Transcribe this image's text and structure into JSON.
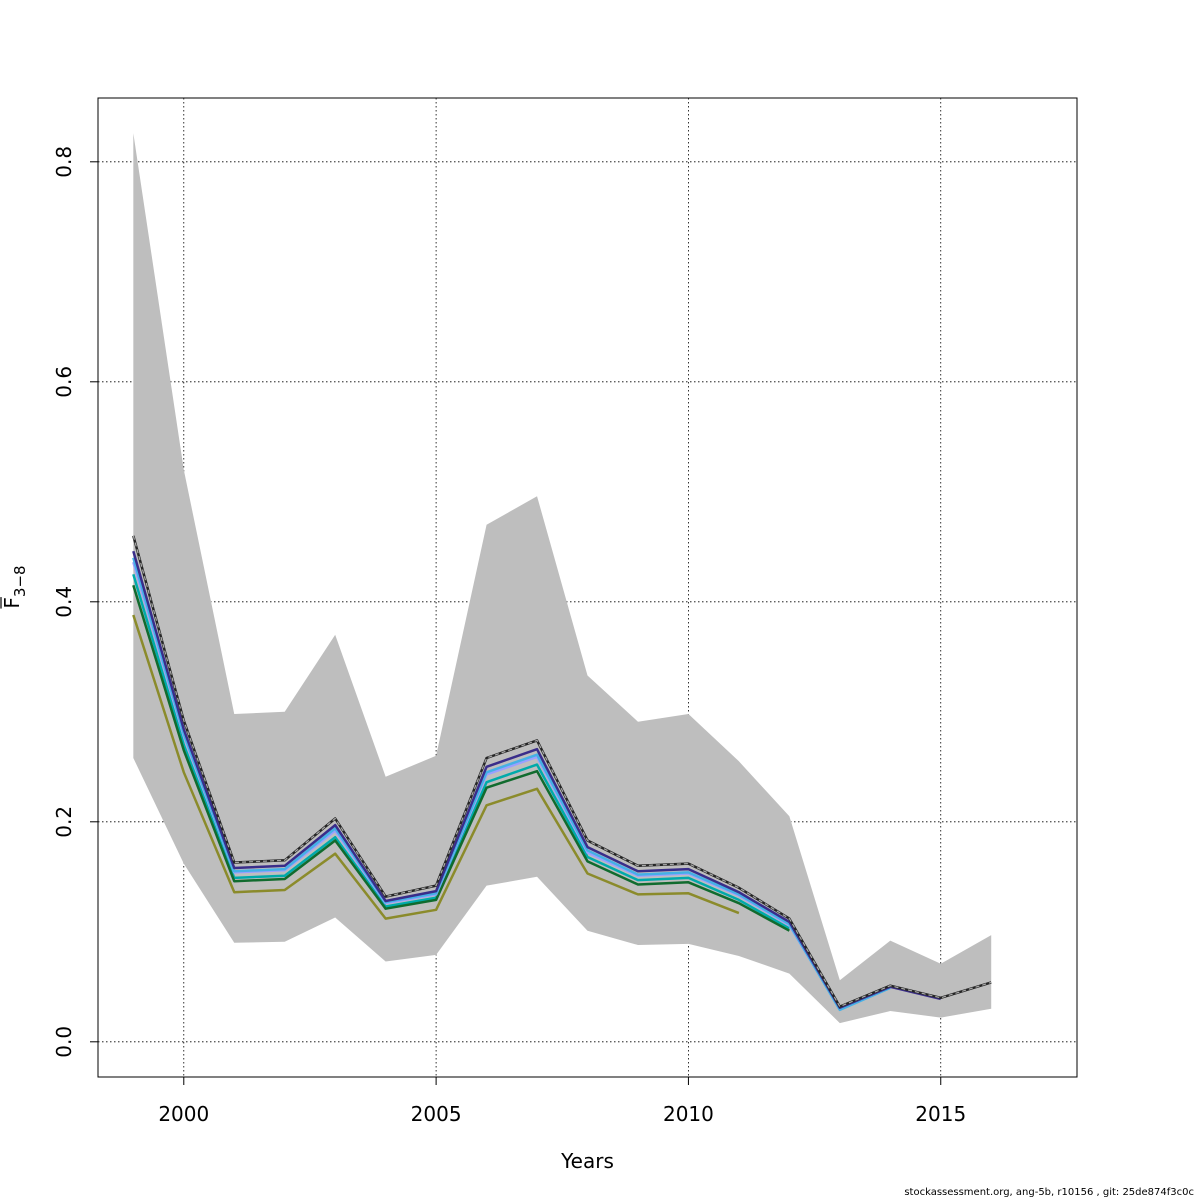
{
  "chart_data": {
    "type": "line",
    "title": "",
    "xlabel": "Years",
    "ylabel": {
      "main": "F",
      "sub": "3−8",
      "overline": true
    },
    "xlim": [
      1998.3,
      2017.7
    ],
    "ylim": [
      -0.032,
      0.858
    ],
    "x_ticks": [
      2000,
      2005,
      2010,
      2015
    ],
    "x_tick_labels": [
      "2000",
      "2005",
      "2010",
      "2015"
    ],
    "y_ticks": [
      0.0,
      0.2,
      0.4,
      0.6,
      0.8
    ],
    "y_tick_labels": [
      "0.0",
      "0.2",
      "0.4",
      "0.6",
      "0.8"
    ],
    "grid": true,
    "confidence_band": {
      "color": "#bebebe",
      "x": [
        1999,
        2000,
        2001,
        2002,
        2003,
        2004,
        2005,
        2006,
        2007,
        2008,
        2009,
        2010,
        2011,
        2012,
        2013,
        2014,
        2015,
        2016
      ],
      "lower": [
        0.258,
        0.162,
        0.09,
        0.091,
        0.113,
        0.073,
        0.079,
        0.142,
        0.15,
        0.101,
        0.088,
        0.089,
        0.078,
        0.062,
        0.017,
        0.028,
        0.022,
        0.03
      ],
      "upper": [
        0.826,
        0.52,
        0.298,
        0.3,
        0.37,
        0.241,
        0.26,
        0.47,
        0.496,
        0.333,
        0.291,
        0.298,
        0.255,
        0.205,
        0.056,
        0.092,
        0.071,
        0.097
      ]
    },
    "series": [
      {
        "color": "#8b8b2b",
        "width": 2.5,
        "dashed": false,
        "x": [
          1999,
          2000,
          2001,
          2002,
          2003,
          2004,
          2005,
          2006,
          2007,
          2008,
          2009,
          2010,
          2011
        ],
        "values": [
          0.388,
          0.245,
          0.136,
          0.138,
          0.171,
          0.112,
          0.12,
          0.215,
          0.23,
          0.153,
          0.134,
          0.135,
          0.117
        ]
      },
      {
        "color": "#00aaaa",
        "width": 2.5,
        "dashed": false,
        "x": [
          1999,
          2000,
          2001,
          2002,
          2003,
          2004,
          2005,
          2006,
          2007,
          2008,
          2009,
          2010,
          2011,
          2012
        ],
        "values": [
          0.425,
          0.27,
          0.149,
          0.151,
          0.186,
          0.123,
          0.131,
          0.236,
          0.252,
          0.168,
          0.147,
          0.149,
          0.129,
          0.103
        ]
      },
      {
        "color": "#116b2e",
        "width": 2.5,
        "dashed": false,
        "x": [
          1999,
          2000,
          2001,
          2002,
          2003,
          2004,
          2005,
          2006,
          2007,
          2008,
          2009,
          2010,
          2011,
          2012
        ],
        "values": [
          0.415,
          0.265,
          0.146,
          0.148,
          0.183,
          0.121,
          0.129,
          0.231,
          0.246,
          0.164,
          0.143,
          0.145,
          0.126,
          0.101
        ]
      },
      {
        "color": "#9aa0ff",
        "width": 2.5,
        "dashed": false,
        "x": [
          1999,
          2000,
          2001,
          2002,
          2003,
          2004,
          2005,
          2006,
          2007,
          2008,
          2009,
          2010,
          2011,
          2012,
          2013
        ],
        "values": [
          0.436,
          0.278,
          0.154,
          0.156,
          0.192,
          0.126,
          0.134,
          0.243,
          0.259,
          0.172,
          0.151,
          0.153,
          0.133,
          0.106,
          0.03
        ]
      },
      {
        "color": "#45b0e6",
        "width": 2.5,
        "dashed": false,
        "x": [
          1999,
          2000,
          2001,
          2002,
          2003,
          2004,
          2005,
          2006,
          2007,
          2008,
          2009,
          2010,
          2011,
          2012,
          2013,
          2014
        ],
        "values": [
          0.44,
          0.28,
          0.155,
          0.157,
          0.194,
          0.127,
          0.135,
          0.245,
          0.261,
          0.174,
          0.152,
          0.154,
          0.134,
          0.107,
          0.029,
          0.049
        ]
      },
      {
        "color": "#3a2d8a",
        "width": 2.5,
        "dashed": false,
        "x": [
          1999,
          2000,
          2001,
          2002,
          2003,
          2004,
          2005,
          2006,
          2007,
          2008,
          2009,
          2010,
          2011,
          2012,
          2013,
          2014,
          2015
        ],
        "values": [
          0.446,
          0.284,
          0.158,
          0.16,
          0.197,
          0.128,
          0.137,
          0.25,
          0.266,
          0.177,
          0.155,
          0.157,
          0.136,
          0.109,
          0.031,
          0.05,
          0.039
        ]
      },
      {
        "color": "#262626",
        "width": 2.5,
        "dashed": false,
        "x": [
          1999,
          2000,
          2001,
          2002,
          2003,
          2004,
          2005,
          2006,
          2007,
          2008,
          2009,
          2010,
          2011,
          2012,
          2013,
          2014,
          2015,
          2016
        ],
        "values": [
          0.46,
          0.292,
          0.163,
          0.165,
          0.203,
          0.132,
          0.142,
          0.258,
          0.274,
          0.183,
          0.16,
          0.162,
          0.14,
          0.112,
          0.032,
          0.051,
          0.04,
          0.054
        ]
      },
      {
        "color": "#aaaaaa",
        "width": 1.2,
        "dashed": true,
        "x": [
          1999,
          2000,
          2001,
          2002,
          2003,
          2004,
          2005,
          2006,
          2007,
          2008,
          2009,
          2010,
          2011,
          2012,
          2013,
          2014,
          2015,
          2016
        ],
        "values": [
          0.46,
          0.292,
          0.163,
          0.165,
          0.203,
          0.132,
          0.142,
          0.258,
          0.274,
          0.183,
          0.16,
          0.162,
          0.14,
          0.112,
          0.032,
          0.051,
          0.04,
          0.054
        ]
      }
    ]
  },
  "footer": "stockassessment.org, ang-5b, r10156 , git: 25de874f3c0c"
}
